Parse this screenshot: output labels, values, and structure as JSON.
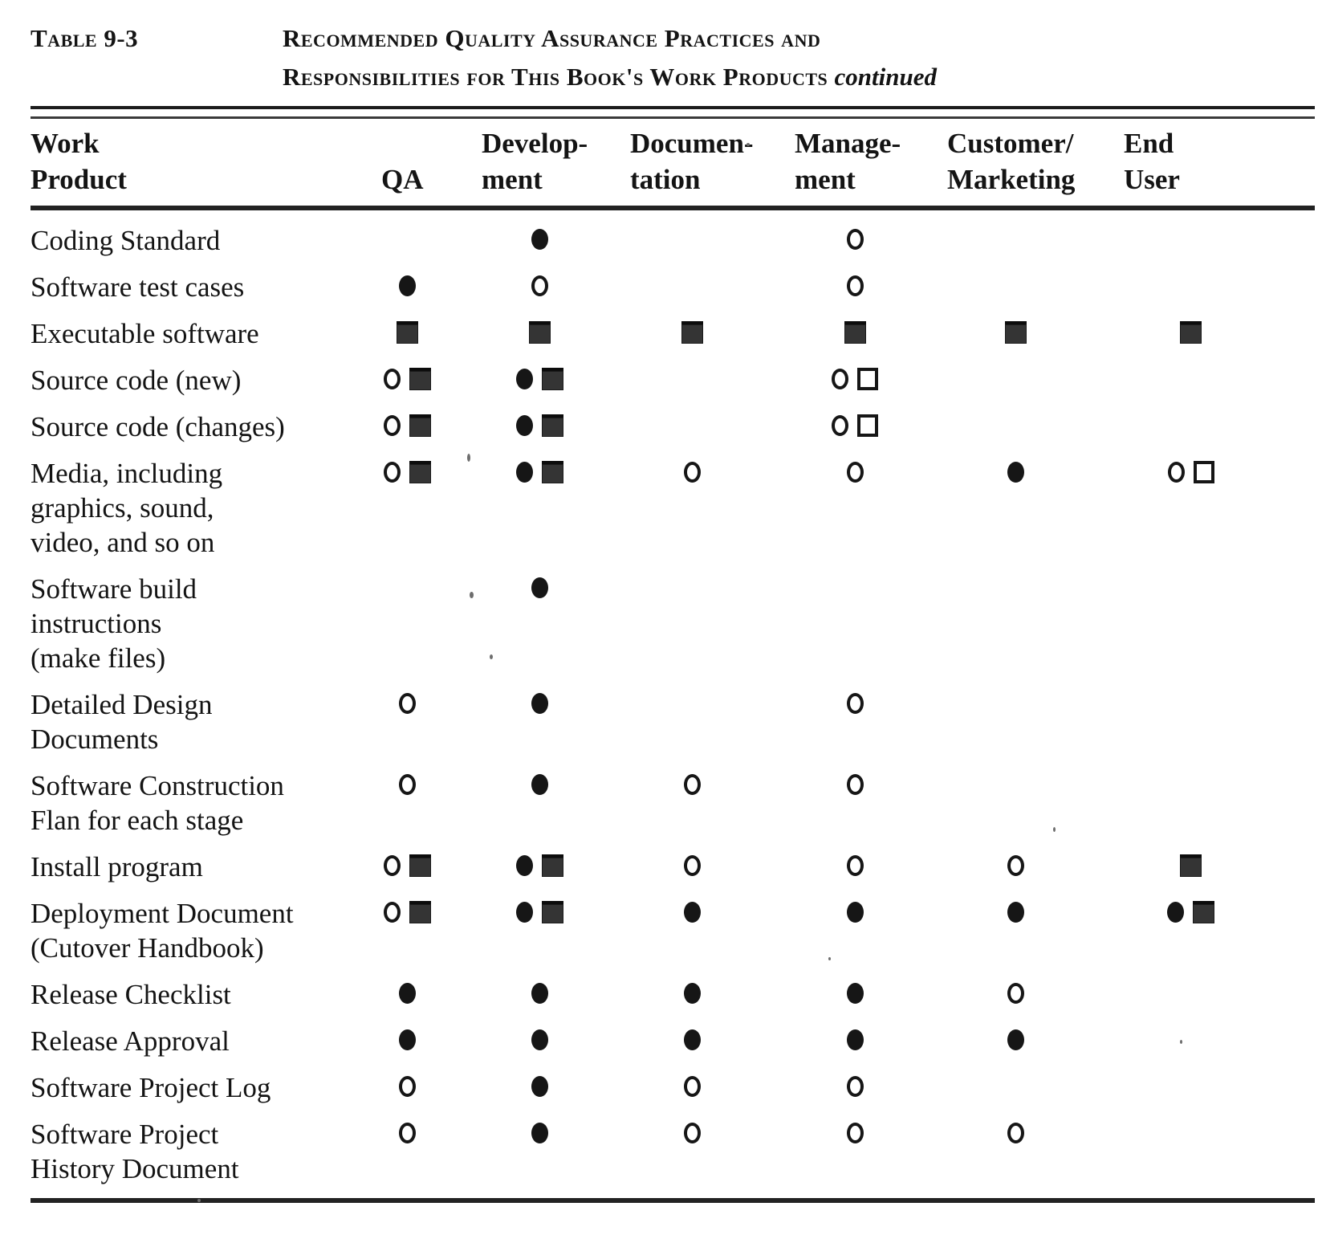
{
  "header": {
    "table_label": "Table 9-3",
    "title_line1": "Recommended Quality Assurance Practices and",
    "title_line2": "Responsibilities for This Book's Work Products",
    "title_continued": "continued"
  },
  "table": {
    "columns": [
      {
        "id": "work-product",
        "lines": [
          "Work",
          "Product"
        ]
      },
      {
        "id": "qa",
        "lines": [
          "",
          "QA"
        ]
      },
      {
        "id": "development",
        "lines": [
          "Develop-",
          "ment"
        ]
      },
      {
        "id": "documentation",
        "lines": [
          "Documen-",
          "tation"
        ]
      },
      {
        "id": "management",
        "lines": [
          "Manage-",
          "ment"
        ]
      },
      {
        "id": "customer-marketing",
        "lines": [
          "Customer/",
          "Marketing"
        ]
      },
      {
        "id": "end-user",
        "lines": [
          "End",
          "User"
        ]
      }
    ],
    "symbol_names": {
      "fc": "filled-circle",
      "oc": "open-circle",
      "fs": "filled-square",
      "os": "open-square"
    },
    "rows": [
      {
        "label_lines": [
          "Coding Standard"
        ],
        "cells": [
          [],
          [
            "fc"
          ],
          [],
          [
            "oc"
          ],
          [],
          []
        ]
      },
      {
        "label_lines": [
          "Software test cases"
        ],
        "cells": [
          [
            "fc"
          ],
          [
            "oc"
          ],
          [],
          [
            "oc"
          ],
          [],
          []
        ]
      },
      {
        "label_lines": [
          "Executable software"
        ],
        "cells": [
          [
            "fs"
          ],
          [
            "fs"
          ],
          [
            "fs"
          ],
          [
            "fs"
          ],
          [
            "fs"
          ],
          [
            "fs"
          ]
        ]
      },
      {
        "label_lines": [
          "Source code (new)"
        ],
        "cells": [
          [
            "oc",
            "fs"
          ],
          [
            "fc",
            "fs"
          ],
          [],
          [
            "oc",
            "os"
          ],
          [],
          []
        ]
      },
      {
        "label_lines": [
          "Source code (changes)"
        ],
        "cells": [
          [
            "oc",
            "fs"
          ],
          [
            "fc",
            "fs"
          ],
          [],
          [
            "oc",
            "os"
          ],
          [],
          []
        ]
      },
      {
        "label_lines": [
          "Media, including",
          "graphics, sound,",
          "video, and so on"
        ],
        "cells": [
          [
            "oc",
            "fs"
          ],
          [
            "fc",
            "fs"
          ],
          [
            "oc"
          ],
          [
            "oc"
          ],
          [
            "fc"
          ],
          [
            "oc",
            "os"
          ]
        ]
      },
      {
        "label_lines": [
          "Software  build",
          "instructions",
          "(make files)"
        ],
        "cells": [
          [],
          [
            "fc"
          ],
          [],
          [],
          [],
          []
        ]
      },
      {
        "label_lines": [
          "Detailed Design",
          "Documents"
        ],
        "cells": [
          [
            "oc"
          ],
          [
            "fc"
          ],
          [],
          [
            "oc"
          ],
          [],
          []
        ]
      },
      {
        "label_lines": [
          "Software  Construction",
          "Flan for each stage"
        ],
        "cells": [
          [
            "oc"
          ],
          [
            "fc"
          ],
          [
            "oc"
          ],
          [
            "oc"
          ],
          [],
          []
        ]
      },
      {
        "label_lines": [
          "Install program"
        ],
        "cells": [
          [
            "oc",
            "fs"
          ],
          [
            "fc",
            "fs"
          ],
          [
            "oc"
          ],
          [
            "oc"
          ],
          [
            "oc"
          ],
          [
            "fs"
          ]
        ]
      },
      {
        "label_lines": [
          "Deployment Document",
          "(Cutover  Handbook)"
        ],
        "cells": [
          [
            "oc",
            "fs"
          ],
          [
            "fc",
            "fs"
          ],
          [
            "fc"
          ],
          [
            "fc"
          ],
          [
            "fc"
          ],
          [
            "fc",
            "fs"
          ]
        ]
      },
      {
        "label_lines": [
          "Release  Checklist"
        ],
        "cells": [
          [
            "fc"
          ],
          [
            "fc"
          ],
          [
            "fc"
          ],
          [
            "fc"
          ],
          [
            "oc"
          ],
          []
        ]
      },
      {
        "label_lines": [
          "Release  Approval"
        ],
        "cells": [
          [
            "fc"
          ],
          [
            "fc"
          ],
          [
            "fc"
          ],
          [
            "fc"
          ],
          [
            "fc"
          ],
          []
        ]
      },
      {
        "label_lines": [
          "Software Project Log"
        ],
        "cells": [
          [
            "oc"
          ],
          [
            "fc"
          ],
          [
            "oc"
          ],
          [
            "oc"
          ],
          [],
          []
        ]
      },
      {
        "label_lines": [
          "Software Project",
          "History Document"
        ],
        "cells": [
          [
            "oc"
          ],
          [
            "fc"
          ],
          [
            "oc"
          ],
          [
            "oc"
          ],
          [
            "oc"
          ],
          []
        ]
      }
    ]
  }
}
